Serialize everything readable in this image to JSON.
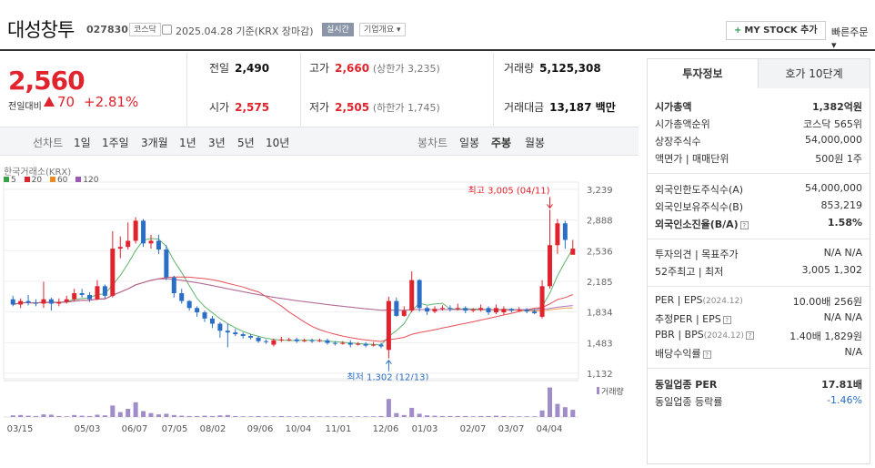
{
  "header": {
    "name": "대성창투",
    "code": "027830",
    "market_badge": "코스닥",
    "date_text": "2025.04.28  기준(KRX 장마감)",
    "realtime_badge": "실시간",
    "overview_badge": "기업개요",
    "mystock_label": "MY STOCK 추가",
    "quick_order_label": "빠른주문"
  },
  "price": {
    "current": "2,560",
    "change_label": "전일대비",
    "change_value": "70",
    "change_pct": "+2.81%",
    "color_up": "#e0232d"
  },
  "quotes": {
    "prev_close_label": "전일",
    "prev_close": "2,490",
    "high_label": "고가",
    "high": "2,660",
    "upper_limit": "(상한가 3,235)",
    "volume_label": "거래량",
    "volume": "5,125,308",
    "open_label": "시가",
    "open": "2,575",
    "low_label": "저가",
    "low": "2,505",
    "lower_limit": "(하한가 1,745)",
    "value_label": "거래대금",
    "value": "13,187 백만"
  },
  "period_bar": {
    "line_label": "선차트",
    "line_periods": [
      "1일",
      "1주일",
      "3개월",
      "1년",
      "3년",
      "5년",
      "10년"
    ],
    "candle_label": "봉차트",
    "candle_periods": [
      "일봉",
      "주봉",
      "월봉"
    ],
    "selected_candle": "주봉"
  },
  "chart_data": {
    "type": "candlestick",
    "source": "한국거래소(KRX)",
    "ma_legend": [
      {
        "label": "5",
        "color": "#3aa04a"
      },
      {
        "label": "20",
        "color": "#e0232d"
      },
      {
        "label": "60",
        "color": "#f08a1d"
      },
      {
        "label": "120",
        "color": "#9b59b6"
      }
    ],
    "y_ticks": [
      "3,239",
      "2,888",
      "2,536",
      "2,185",
      "1,834",
      "1,483",
      "1,132"
    ],
    "y_range": [
      1132,
      3239
    ],
    "x_labels": [
      "03/15",
      "05/03",
      "06/07",
      "07/05",
      "08/02",
      "09/06",
      "10/04",
      "11/01",
      "12/06",
      "01/03",
      "02/07",
      "03/07",
      "04/04"
    ],
    "high_annotation": "최고 3,005 (04/11)",
    "low_annotation": "최저 1,302 (12/13)",
    "volume_label": "거래량",
    "candles": [
      [
        1980,
        1920,
        2020,
        1900
      ],
      [
        1920,
        1960,
        1990,
        1880
      ],
      [
        1960,
        1940,
        2030,
        1910
      ],
      [
        1940,
        1930,
        1980,
        1900
      ],
      [
        1930,
        1980,
        2180,
        1880
      ],
      [
        1980,
        1930,
        2000,
        1850
      ],
      [
        1930,
        1950,
        1990,
        1900
      ],
      [
        1950,
        1980,
        2020,
        1930
      ],
      [
        1980,
        2050,
        2100,
        1960
      ],
      [
        2050,
        2030,
        2100,
        2000
      ],
      [
        2030,
        1980,
        2060,
        1950
      ],
      [
        1980,
        2130,
        2200,
        1970
      ],
      [
        2130,
        2020,
        2150,
        1990
      ],
      [
        2020,
        2560,
        2760,
        2000
      ],
      [
        2560,
        2580,
        2700,
        2450
      ],
      [
        2580,
        2650,
        2860,
        2550
      ],
      [
        2650,
        2880,
        2920,
        2620
      ],
      [
        2880,
        2620,
        2900,
        2580
      ],
      [
        2620,
        2650,
        2720,
        2560
      ],
      [
        2650,
        2550,
        2720,
        2500
      ],
      [
        2550,
        2230,
        2600,
        2200
      ],
      [
        2230,
        2050,
        2250,
        2000
      ],
      [
        2050,
        1960,
        2100,
        1930
      ],
      [
        1960,
        1880,
        1970,
        1850
      ],
      [
        1880,
        1830,
        1900,
        1780
      ],
      [
        1830,
        1760,
        1850,
        1720
      ],
      [
        1760,
        1700,
        1790,
        1650
      ],
      [
        1700,
        1620,
        1720,
        1540
      ],
      [
        1620,
        1600,
        1700,
        1430
      ],
      [
        1600,
        1580,
        1640,
        1560
      ],
      [
        1580,
        1560,
        1600,
        1530
      ],
      [
        1560,
        1540,
        1580,
        1520
      ],
      [
        1540,
        1500,
        1560,
        1480
      ],
      [
        1500,
        1490,
        1520,
        1470
      ],
      [
        1460,
        1510,
        1530,
        1440
      ],
      [
        1510,
        1520,
        1550,
        1490
      ],
      [
        1520,
        1520,
        1540,
        1500
      ],
      [
        1520,
        1500,
        1540,
        1480
      ],
      [
        1500,
        1510,
        1530,
        1490
      ],
      [
        1510,
        1500,
        1530,
        1480
      ],
      [
        1500,
        1510,
        1530,
        1490
      ],
      [
        1510,
        1480,
        1530,
        1460
      ],
      [
        1480,
        1470,
        1500,
        1450
      ],
      [
        1470,
        1480,
        1500,
        1460
      ],
      [
        1480,
        1460,
        1510,
        1430
      ],
      [
        1460,
        1470,
        1490,
        1450
      ],
      [
        1470,
        1450,
        1490,
        1430
      ],
      [
        1450,
        1460,
        1490,
        1440
      ],
      [
        1460,
        1440,
        1480,
        1420
      ],
      [
        1400,
        1960,
        2010,
        1302
      ],
      [
        1960,
        1790,
        2000,
        1780
      ],
      [
        1790,
        1850,
        1900,
        1780
      ],
      [
        1850,
        2200,
        2300,
        1830
      ],
      [
        2200,
        1880,
        2210,
        1840
      ],
      [
        1880,
        1840,
        1900,
        1800
      ],
      [
        1840,
        1870,
        1900,
        1820
      ],
      [
        1870,
        1880,
        1910,
        1850
      ],
      [
        1880,
        1870,
        1910,
        1840
      ],
      [
        1870,
        1880,
        1930,
        1850
      ],
      [
        1880,
        1850,
        1900,
        1820
      ],
      [
        1850,
        1860,
        1880,
        1830
      ],
      [
        1860,
        1880,
        1920,
        1840
      ],
      [
        1880,
        1830,
        1900,
        1800
      ],
      [
        1830,
        1880,
        1920,
        1810
      ],
      [
        1830,
        1870,
        1900,
        1800
      ],
      [
        1870,
        1850,
        1880,
        1830
      ],
      [
        1850,
        1860,
        1890,
        1840
      ],
      [
        1860,
        1840,
        1880,
        1820
      ],
      [
        1840,
        1820,
        1870,
        1810
      ],
      [
        1780,
        2130,
        2200,
        1760
      ],
      [
        2130,
        2600,
        3005,
        2100
      ],
      [
        2600,
        2850,
        2900,
        2500
      ],
      [
        2850,
        2660,
        2880,
        2560
      ],
      [
        2490,
        2560,
        2660,
        2505
      ]
    ],
    "volumes": [
      0.05,
      0.06,
      0.04,
      0.03,
      0.08,
      0.07,
      0.03,
      0.02,
      0.06,
      0.04,
      0.03,
      0.07,
      0.05,
      0.35,
      0.15,
      0.25,
      0.45,
      0.18,
      0.12,
      0.08,
      0.1,
      0.06,
      0.04,
      0.03,
      0.03,
      0.04,
      0.03,
      0.05,
      0.06,
      0.03,
      0.02,
      0.02,
      0.03,
      0.02,
      0.02,
      0.03,
      0.02,
      0.02,
      0.02,
      0.02,
      0.02,
      0.02,
      0.02,
      0.02,
      0.02,
      0.02,
      0.02,
      0.02,
      0.03,
      0.55,
      0.12,
      0.06,
      0.28,
      0.1,
      0.05,
      0.04,
      0.03,
      0.03,
      0.03,
      0.03,
      0.02,
      0.03,
      0.03,
      0.04,
      0.03,
      0.02,
      0.02,
      0.02,
      0.02,
      0.2,
      0.9,
      0.4,
      0.3,
      0.22
    ]
  },
  "right_panel": {
    "tab_active": "투자정보",
    "tab_inactive": "호가 10단계",
    "rows": {
      "market_cap_label": "시가총액",
      "market_cap": "1,382억원",
      "market_rank_label": "시가총액순위",
      "market_rank": "코스닥 565위",
      "shares_label": "상장주식수",
      "shares": "54,000,000",
      "par_label": "액면가 | 매매단위",
      "par": "500원  1주",
      "foreign_limit_label": "외국인한도주식수(A)",
      "foreign_limit": "54,000,000",
      "foreign_hold_label": "외국인보유주식수(B)",
      "foreign_hold": "853,219",
      "foreign_ratio_label": "외국인소진율(B/A)",
      "foreign_ratio": "1.58%",
      "opinion_label": "투자의견 | 목표주가",
      "opinion": "N/A  N/A",
      "w52_label": "52주최고 | 최저",
      "w52": "3,005  1,302",
      "per_label": "PER | EPS",
      "per_date": "(2024.12)",
      "per": "10.00배  256원",
      "est_per_label": "추정PER | EPS",
      "est_per": "N/A  N/A",
      "pbr_label": "PBR | BPS",
      "pbr_date": "(2024.12)",
      "pbr": "1.40배  1,829원",
      "div_label": "배당수익률",
      "div": "N/A",
      "industry_per_label": "동일업종 PER",
      "industry_per": "17.81배",
      "industry_chg_label": "동일업종 등락률",
      "industry_chg": "-1.46%"
    }
  }
}
